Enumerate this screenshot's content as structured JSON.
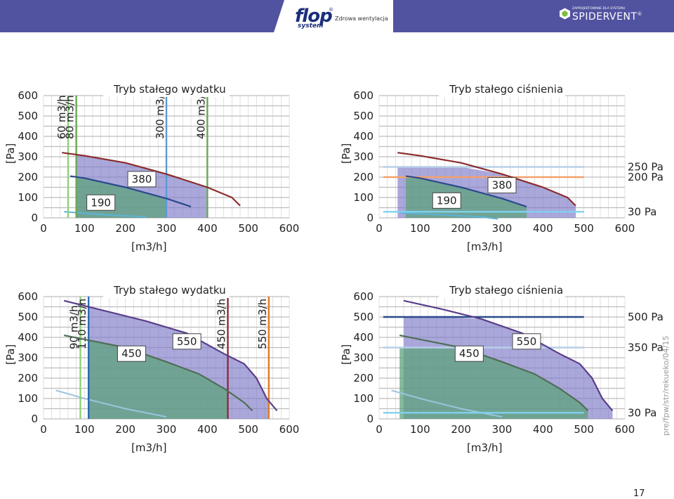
{
  "header": {
    "brand": "flop",
    "brand_sub": "system",
    "registered": "®",
    "tagline": "Zdrowa wentylacja",
    "partner_small": "ZAPROJEKTOWANE DLA SYSTEMU",
    "partner_name": "SPIDERVENT",
    "partner_mark": "®"
  },
  "side_note": "pre/fpw/str/rekueko/04/15",
  "page_number": "17",
  "colors": {
    "banner": "#5153a0",
    "grid": "#c8c8c8",
    "purple_fill": "#7c79c8",
    "green_fill": "#5da27c",
    "red_curve": "#8b2c2c",
    "navy_curve": "#2b4a8c"
  },
  "chart_data": [
    {
      "type": "area",
      "title": "Tryb stałego wydatku",
      "xlabel": "[m3/h]",
      "ylabel": "[Pa]",
      "xlim": [
        0,
        600
      ],
      "ylim": [
        0,
        600
      ],
      "xticks": [
        0,
        100,
        200,
        300,
        400,
        500,
        600
      ],
      "yticks": [
        0,
        100,
        200,
        300,
        400,
        500,
        600
      ],
      "series": [
        {
          "name": "380",
          "color": "#8b2c2c",
          "points": [
            [
              45,
              320
            ],
            [
              100,
              305
            ],
            [
              200,
              270
            ],
            [
              300,
              215
            ],
            [
              400,
              150
            ],
            [
              460,
              100
            ],
            [
              480,
              60
            ]
          ]
        },
        {
          "name": "190",
          "color": "#2b4a8c",
          "points": [
            [
              65,
              205
            ],
            [
              100,
              195
            ],
            [
              200,
              150
            ],
            [
              300,
              95
            ],
            [
              360,
              55
            ]
          ]
        }
      ],
      "bottom_curve": {
        "color": "#5bb3d6",
        "points": [
          [
            50,
            30
          ],
          [
            150,
            15
          ],
          [
            250,
            5
          ]
        ]
      },
      "vlines": [
        {
          "x": 60,
          "label": "60 m3/h",
          "color": "#8fd07a"
        },
        {
          "x": 80,
          "label": "80 m3/h",
          "color": "#6aa84f"
        },
        {
          "x": 300,
          "label": "300 m3/h",
          "color": "#5b9bd5"
        },
        {
          "x": 400,
          "label": "400 m3/h",
          "color": "#6aa84f"
        }
      ],
      "hlines": [],
      "boxes": [
        {
          "text": "380",
          "x": 240,
          "y": 190
        },
        {
          "text": "190",
          "x": 140,
          "y": 75
        }
      ]
    },
    {
      "type": "area",
      "title": "Tryb stałego ciśnienia",
      "xlabel": "[m3/h]",
      "ylabel": "[Pa]",
      "xlim": [
        0,
        600
      ],
      "ylim": [
        0,
        600
      ],
      "xticks": [
        0,
        100,
        200,
        300,
        400,
        500,
        600
      ],
      "yticks": [
        0,
        100,
        200,
        300,
        400,
        500,
        600
      ],
      "series": [
        {
          "name": "380",
          "color": "#8b2c2c",
          "points": [
            [
              45,
              320
            ],
            [
              100,
              305
            ],
            [
              200,
              270
            ],
            [
              300,
              215
            ],
            [
              400,
              150
            ],
            [
              460,
              100
            ],
            [
              480,
              60
            ]
          ]
        },
        {
          "name": "190",
          "color": "#2b4a8c",
          "points": [
            [
              65,
              205
            ],
            [
              100,
              195
            ],
            [
              200,
              150
            ],
            [
              300,
              95
            ],
            [
              360,
              55
            ]
          ]
        }
      ],
      "bottom_curve": {
        "color": "#5bb3d6",
        "points": [
          [
            50,
            25
          ],
          [
            150,
            15
          ],
          [
            250,
            5
          ],
          [
            290,
            -5
          ]
        ]
      },
      "vlines": [],
      "hlines": [
        {
          "y": 250,
          "label": "250 Pa",
          "color": "#b8cfe8"
        },
        {
          "y": 200,
          "label": "200 Pa",
          "color": "#f2a16b"
        },
        {
          "y": 30,
          "label": "30 Pa",
          "color": "#7fd2ee"
        }
      ],
      "boxes": [
        {
          "text": "380",
          "x": 300,
          "y": 160
        },
        {
          "text": "190",
          "x": 165,
          "y": 85
        }
      ]
    },
    {
      "type": "area",
      "title": "Tryb stałego wydatku",
      "xlabel": "[m3/h]",
      "ylabel": "[Pa]",
      "xlim": [
        0,
        600
      ],
      "ylim": [
        0,
        600
      ],
      "xticks": [
        0,
        100,
        200,
        300,
        400,
        500,
        600
      ],
      "yticks": [
        0,
        100,
        200,
        300,
        400,
        500,
        600
      ],
      "series": [
        {
          "name": "550",
          "color": "#5a3e8a",
          "points": [
            [
              50,
              580
            ],
            [
              150,
              530
            ],
            [
              250,
              480
            ],
            [
              350,
              420
            ],
            [
              440,
              320
            ],
            [
              490,
              270
            ],
            [
              520,
              200
            ],
            [
              545,
              100
            ],
            [
              570,
              40
            ]
          ]
        },
        {
          "name": "450",
          "color": "#4f6e55",
          "points": [
            [
              50,
              410
            ],
            [
              100,
              390
            ],
            [
              200,
              350
            ],
            [
              300,
              280
            ],
            [
              380,
              220
            ],
            [
              440,
              150
            ],
            [
              490,
              80
            ],
            [
              510,
              40
            ]
          ]
        }
      ],
      "bottom_curve": {
        "color": "#9cc3dd",
        "points": [
          [
            30,
            140
          ],
          [
            100,
            100
          ],
          [
            200,
            50
          ],
          [
            300,
            10
          ]
        ]
      },
      "vlines": [
        {
          "x": 90,
          "label": "90 m3/h",
          "color": "#8fd07a"
        },
        {
          "x": 110,
          "label": "110 m3/h",
          "color": "#2b6cb0"
        },
        {
          "x": 450,
          "label": "450 m3/h",
          "color": "#8b2c3c"
        },
        {
          "x": 550,
          "label": "550 m3/h",
          "color": "#e07b24"
        }
      ],
      "hlines": [],
      "boxes": [
        {
          "text": "550",
          "x": 350,
          "y": 380
        },
        {
          "text": "450",
          "x": 215,
          "y": 320
        }
      ]
    },
    {
      "type": "area",
      "title": "Tryb stałego ciśnienia",
      "xlabel": "[m3/h]",
      "ylabel": "[Pa]",
      "xlim": [
        0,
        600
      ],
      "ylim": [
        0,
        600
      ],
      "xticks": [
        0,
        100,
        200,
        300,
        400,
        500,
        600
      ],
      "yticks": [
        0,
        100,
        200,
        300,
        400,
        500,
        600
      ],
      "series": [
        {
          "name": "550",
          "color": "#5a3e8a",
          "points": [
            [
              60,
              580
            ],
            [
              150,
              540
            ],
            [
              250,
              490
            ],
            [
              350,
              420
            ],
            [
              440,
              320
            ],
            [
              490,
              270
            ],
            [
              520,
              200
            ],
            [
              545,
              100
            ],
            [
              570,
              40
            ]
          ]
        },
        {
          "name": "450",
          "color": "#4f6e55",
          "points": [
            [
              50,
              410
            ],
            [
              100,
              390
            ],
            [
              200,
              350
            ],
            [
              300,
              280
            ],
            [
              380,
              220
            ],
            [
              440,
              150
            ],
            [
              490,
              80
            ],
            [
              510,
              40
            ]
          ]
        }
      ],
      "bottom_curve": {
        "color": "#9cc3dd",
        "points": [
          [
            30,
            140
          ],
          [
            100,
            100
          ],
          [
            200,
            50
          ],
          [
            300,
            10
          ]
        ]
      },
      "vlines": [],
      "hlines": [
        {
          "y": 500,
          "label": "500 Pa",
          "color": "#2b4a8c"
        },
        {
          "y": 350,
          "label": "350 Pa",
          "color": "#b8cfe8"
        },
        {
          "y": 30,
          "label": "30 Pa",
          "color": "#7fd2ee"
        }
      ],
      "boxes": [
        {
          "text": "550",
          "x": 360,
          "y": 380
        },
        {
          "text": "450",
          "x": 220,
          "y": 320
        }
      ]
    }
  ]
}
